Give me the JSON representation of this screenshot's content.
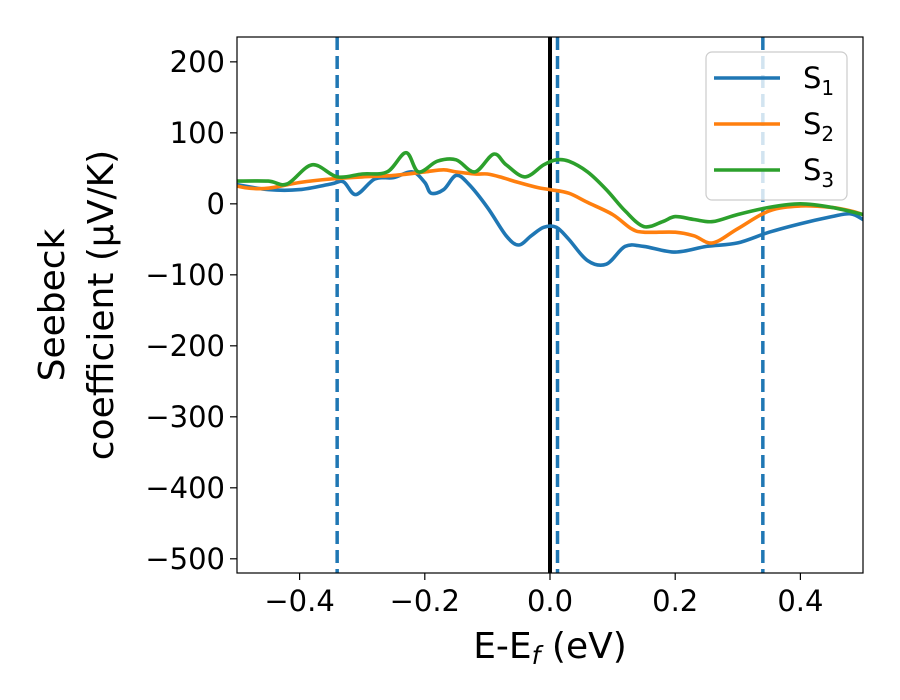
{
  "chart_data": {
    "type": "line",
    "title": "",
    "xlabel": {
      "main": "E-E",
      "sub": "f",
      "unit": " (eV)"
    },
    "ylabel": {
      "line1": "Seebeck",
      "line2": "coefficient  (μV/K)"
    },
    "xlim": [
      -0.5,
      0.5
    ],
    "ylim": [
      -520,
      235
    ],
    "xticks": [
      -0.4,
      -0.2,
      0.0,
      0.2,
      0.4
    ],
    "xtick_labels": [
      "−0.4",
      "−0.2",
      "0.0",
      "0.2",
      "0.4"
    ],
    "yticks": [
      200,
      100,
      0,
      -100,
      -200,
      -300,
      -400,
      -500
    ],
    "ytick_labels": [
      "200",
      "100",
      "0",
      "−100",
      "−200",
      "−300",
      "−400",
      "−500"
    ],
    "grid": false,
    "legend_position": "top-right",
    "vertical_lines": [
      {
        "x": 0.0,
        "color": "#000000",
        "style": "solid"
      },
      {
        "x": -0.34,
        "color": "#1f77b4",
        "style": "dashed"
      },
      {
        "x": 0.012,
        "color": "#1f77b4",
        "style": "dashed"
      },
      {
        "x": 0.34,
        "color": "#1f77b4",
        "style": "dashed"
      }
    ],
    "series": [
      {
        "name": "S",
        "sub": "1",
        "color": "#1f77b4",
        "x": [
          -0.5,
          -0.45,
          -0.4,
          -0.35,
          -0.33,
          -0.31,
          -0.28,
          -0.25,
          -0.22,
          -0.2,
          -0.19,
          -0.17,
          -0.15,
          -0.13,
          -0.1,
          -0.07,
          -0.05,
          -0.03,
          -0.01,
          0.01,
          0.03,
          0.06,
          0.09,
          0.12,
          0.15,
          0.2,
          0.25,
          0.3,
          0.35,
          0.4,
          0.45,
          0.48,
          0.5
        ],
        "y": [
          27,
          20,
          20,
          28,
          31,
          13,
          35,
          37,
          45,
          30,
          15,
          20,
          40,
          28,
          -5,
          -45,
          -58,
          -45,
          -33,
          -33,
          -50,
          -80,
          -85,
          -60,
          -60,
          -68,
          -60,
          -55,
          -40,
          -28,
          -18,
          -14,
          -22
        ]
      },
      {
        "name": "S",
        "sub": "2",
        "color": "#ff7f0e",
        "x": [
          -0.5,
          -0.48,
          -0.45,
          -0.4,
          -0.35,
          -0.3,
          -0.25,
          -0.2,
          -0.17,
          -0.15,
          -0.12,
          -0.1,
          -0.08,
          -0.05,
          -0.02,
          0.0,
          0.03,
          0.06,
          0.1,
          0.13,
          0.15,
          0.2,
          0.23,
          0.26,
          0.3,
          0.35,
          0.4,
          0.45,
          0.48,
          0.5
        ],
        "y": [
          25,
          22,
          22,
          30,
          35,
          38,
          40,
          45,
          48,
          45,
          42,
          42,
          38,
          30,
          23,
          20,
          15,
          2,
          -15,
          -35,
          -40,
          -40,
          -45,
          -55,
          -35,
          -10,
          -3,
          -5,
          -10,
          -15
        ]
      },
      {
        "name": "S",
        "sub": "3",
        "color": "#2ca02c",
        "x": [
          -0.5,
          -0.45,
          -0.42,
          -0.38,
          -0.34,
          -0.3,
          -0.26,
          -0.23,
          -0.21,
          -0.18,
          -0.15,
          -0.12,
          -0.09,
          -0.07,
          -0.04,
          -0.01,
          0.01,
          0.03,
          0.06,
          0.09,
          0.12,
          0.15,
          0.18,
          0.2,
          0.23,
          0.26,
          0.3,
          0.35,
          0.4,
          0.45,
          0.5
        ],
        "y": [
          32,
          32,
          28,
          55,
          38,
          42,
          45,
          72,
          45,
          60,
          62,
          45,
          70,
          55,
          38,
          55,
          62,
          60,
          45,
          20,
          -10,
          -32,
          -25,
          -18,
          -22,
          -25,
          -15,
          -5,
          0,
          -5,
          -15
        ]
      }
    ]
  }
}
